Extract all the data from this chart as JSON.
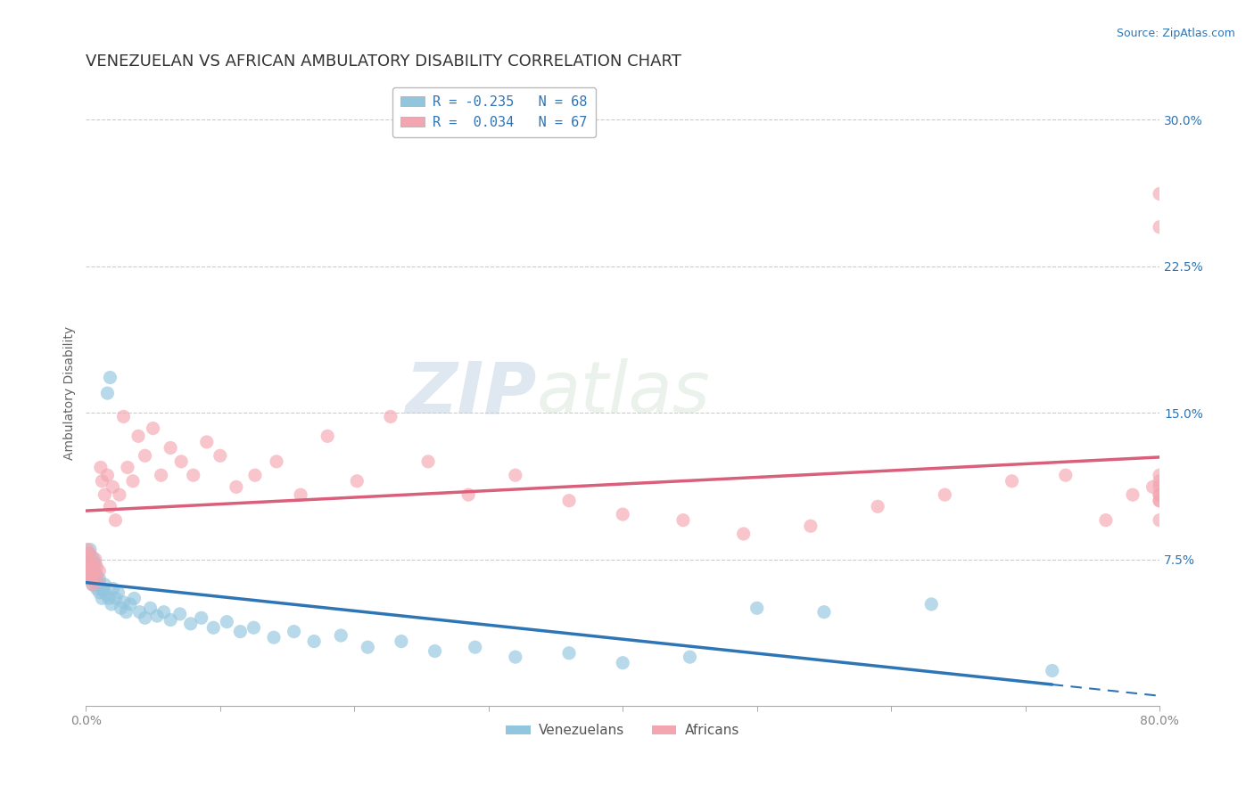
{
  "title": "VENEZUELAN VS AFRICAN AMBULATORY DISABILITY CORRELATION CHART",
  "source": "Source: ZipAtlas.com",
  "ylabel": "Ambulatory Disability",
  "xlim": [
    0.0,
    0.8
  ],
  "ylim": [
    0.0,
    0.32
  ],
  "xticks": [
    0.0,
    0.1,
    0.2,
    0.3,
    0.4,
    0.5,
    0.6,
    0.7,
    0.8
  ],
  "yticks_right": [
    0.075,
    0.15,
    0.225,
    0.3
  ],
  "ytick_right_labels": [
    "7.5%",
    "15.0%",
    "22.5%",
    "30.0%"
  ],
  "venezuelan_color": "#92C5DE",
  "african_color": "#F4A6B0",
  "trend_venezuelan_color": "#2E75B6",
  "trend_african_color": "#D95F7A",
  "legend_text_color": "#2E75B6",
  "R_venezuelan": -0.235,
  "N_venezuelan": 68,
  "R_african": 0.034,
  "N_african": 67,
  "background_color": "#FFFFFF",
  "grid_color": "#CCCCCC",
  "watermark_zip": "ZIP",
  "watermark_atlas": "atlas",
  "legend_label_1": "Venezuelans",
  "legend_label_2": "Africans",
  "venezuelan_x": [
    0.001,
    0.001,
    0.002,
    0.002,
    0.002,
    0.003,
    0.003,
    0.003,
    0.004,
    0.004,
    0.005,
    0.005,
    0.005,
    0.006,
    0.006,
    0.007,
    0.007,
    0.008,
    0.008,
    0.009,
    0.01,
    0.01,
    0.011,
    0.012,
    0.013,
    0.014,
    0.015,
    0.016,
    0.017,
    0.018,
    0.019,
    0.02,
    0.022,
    0.024,
    0.026,
    0.028,
    0.03,
    0.033,
    0.036,
    0.04,
    0.044,
    0.048,
    0.053,
    0.058,
    0.063,
    0.07,
    0.078,
    0.086,
    0.095,
    0.105,
    0.115,
    0.125,
    0.14,
    0.155,
    0.17,
    0.19,
    0.21,
    0.235,
    0.26,
    0.29,
    0.32,
    0.36,
    0.4,
    0.45,
    0.5,
    0.55,
    0.63,
    0.72
  ],
  "venezuelan_y": [
    0.07,
    0.075,
    0.068,
    0.072,
    0.078,
    0.065,
    0.071,
    0.08,
    0.066,
    0.074,
    0.062,
    0.069,
    0.076,
    0.064,
    0.072,
    0.068,
    0.073,
    0.06,
    0.067,
    0.063,
    0.058,
    0.065,
    0.061,
    0.055,
    0.059,
    0.062,
    0.057,
    0.16,
    0.055,
    0.168,
    0.052,
    0.06,
    0.055,
    0.058,
    0.05,
    0.053,
    0.048,
    0.052,
    0.055,
    0.048,
    0.045,
    0.05,
    0.046,
    0.048,
    0.044,
    0.047,
    0.042,
    0.045,
    0.04,
    0.043,
    0.038,
    0.04,
    0.035,
    0.038,
    0.033,
    0.036,
    0.03,
    0.033,
    0.028,
    0.03,
    0.025,
    0.027,
    0.022,
    0.025,
    0.05,
    0.048,
    0.052,
    0.018
  ],
  "african_x": [
    0.001,
    0.001,
    0.002,
    0.002,
    0.003,
    0.003,
    0.004,
    0.004,
    0.005,
    0.005,
    0.006,
    0.007,
    0.008,
    0.009,
    0.01,
    0.011,
    0.012,
    0.014,
    0.016,
    0.018,
    0.02,
    0.022,
    0.025,
    0.028,
    0.031,
    0.035,
    0.039,
    0.044,
    0.05,
    0.056,
    0.063,
    0.071,
    0.08,
    0.09,
    0.1,
    0.112,
    0.126,
    0.142,
    0.16,
    0.18,
    0.202,
    0.227,
    0.255,
    0.285,
    0.32,
    0.36,
    0.4,
    0.445,
    0.49,
    0.54,
    0.59,
    0.64,
    0.69,
    0.73,
    0.76,
    0.78,
    0.795,
    0.8,
    0.8,
    0.8,
    0.8,
    0.8,
    0.8,
    0.8,
    0.8,
    0.8,
    0.8
  ],
  "african_y": [
    0.08,
    0.068,
    0.075,
    0.072,
    0.078,
    0.065,
    0.07,
    0.066,
    0.073,
    0.062,
    0.068,
    0.075,
    0.071,
    0.064,
    0.069,
    0.122,
    0.115,
    0.108,
    0.118,
    0.102,
    0.112,
    0.095,
    0.108,
    0.148,
    0.122,
    0.115,
    0.138,
    0.128,
    0.142,
    0.118,
    0.132,
    0.125,
    0.118,
    0.135,
    0.128,
    0.112,
    0.118,
    0.125,
    0.108,
    0.138,
    0.115,
    0.148,
    0.125,
    0.108,
    0.118,
    0.105,
    0.098,
    0.095,
    0.088,
    0.092,
    0.102,
    0.108,
    0.115,
    0.118,
    0.095,
    0.108,
    0.112,
    0.105,
    0.118,
    0.095,
    0.108,
    0.115,
    0.112,
    0.105,
    0.262,
    0.245,
    0.108
  ],
  "title_fontsize": 13,
  "axis_label_fontsize": 10,
  "tick_fontsize": 10,
  "source_fontsize": 9,
  "legend_fontsize": 11
}
